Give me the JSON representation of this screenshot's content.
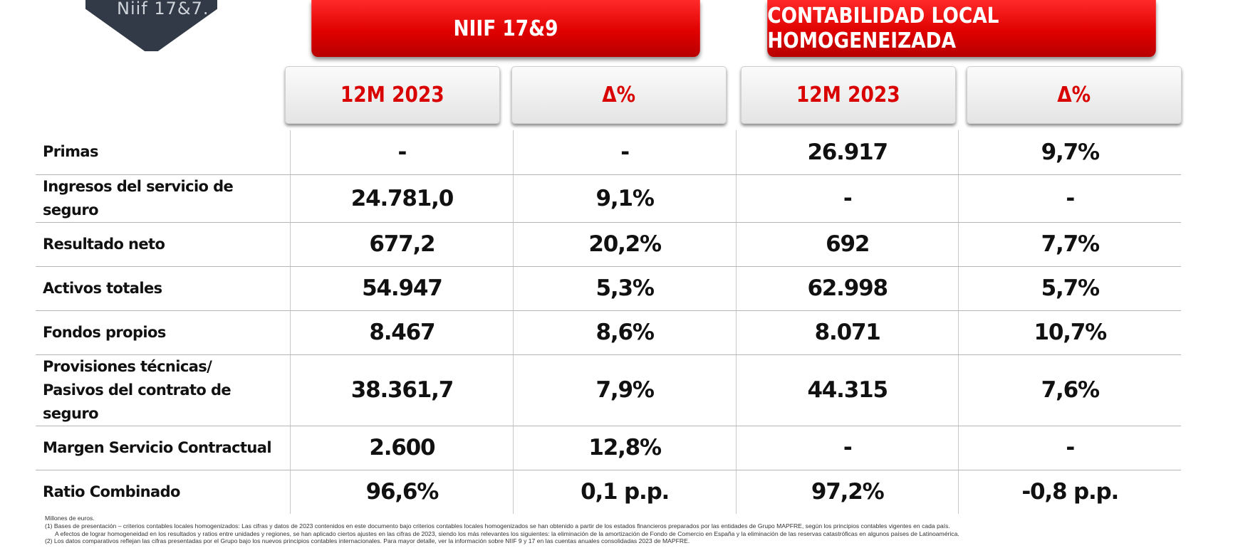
{
  "corner_tab": {
    "text": "Niif 17&7."
  },
  "headers": {
    "niif": "NIIF 17&9",
    "local": "CONTABILIDAD LOCAL HOMOGENEIZADA",
    "sub": [
      "12M 2023",
      "Δ%",
      "12M 2023",
      "Δ%"
    ]
  },
  "rows": [
    {
      "label": "Primas",
      "values": [
        "-",
        "-",
        "26.917",
        "9,7%"
      ]
    },
    {
      "label": "Ingresos del servicio de seguro",
      "values": [
        "24.781,0",
        "9,1%",
        "-",
        "-"
      ]
    },
    {
      "label": "Resultado neto",
      "values": [
        "677,2",
        "20,2%",
        "692",
        "7,7%"
      ]
    },
    {
      "label": "Activos totales",
      "values": [
        "54.947",
        "5,3%",
        "62.998",
        "5,7%"
      ]
    },
    {
      "label": "Fondos propios",
      "values": [
        "8.467",
        "8,6%",
        "8.071",
        "10,7%"
      ]
    },
    {
      "label_line1": "Provisiones técnicas/",
      "label_line2": "Pasivos del contrato de seguro",
      "values": [
        "38.361,7",
        "7,9%",
        "44.315",
        "7,6%"
      ]
    },
    {
      "label": "Margen Servicio Contractual",
      "values": [
        "2.600",
        "12,8%",
        "-",
        "-"
      ]
    },
    {
      "label": "Ratio Combinado",
      "values": [
        "96,6%",
        "0,1 p.p.",
        "97,2%",
        "-0,8 p.p."
      ]
    }
  ],
  "footnotes": {
    "units": "Millones de euros.",
    "note1": "(1) Bases de presentación – criterios contables locales homogenizados: Las cifras y datos de 2023 contenidos en este documento bajo criterios contables locales homogenizados se han obtenido a partir de los estados financieros preparados por las entidades de Grupo MAPFRE, según los principios contables vigentes en cada país.",
    "note1b": "A efectos de lograr homogeneidad en los resultados y ratios entre unidades y regiones, se han aplicado ciertos ajustes en las cifras de 2023, siendo los más relevantes los siguientes: la eliminación de la amortización de Fondo de Comercio en España y la eliminación de las reservas catastróficas en algunos países de Latinoamérica.",
    "note2": "(2) Los datos comparativos reflejan las cifras presentadas por el Grupo bajo los nuevos principios contables internacionales. Para mayor detalle, ver la información sobre NIIF 9 y 17 en las cuentas anuales consolidadas 2023 de MAPFRE."
  }
}
